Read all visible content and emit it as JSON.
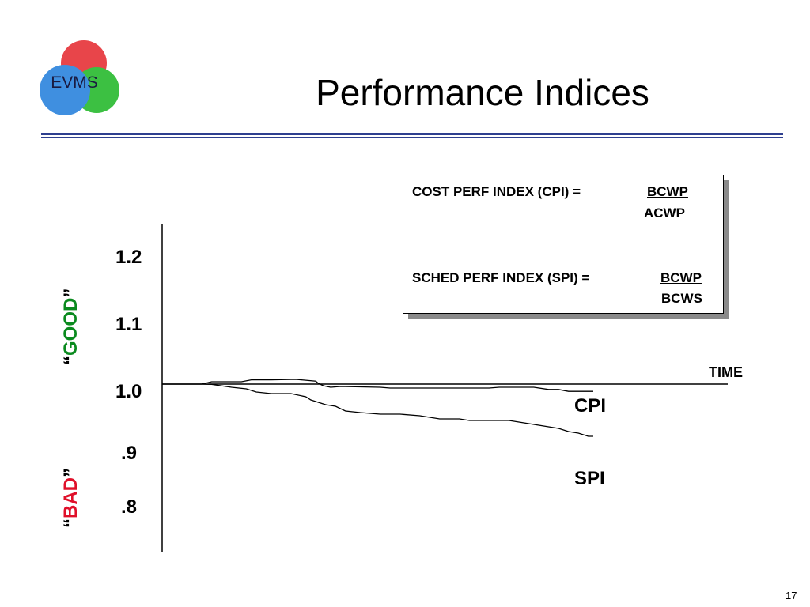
{
  "slide": {
    "title": "Performance Indices",
    "page_number": "17",
    "logo_text": "EVMS"
  },
  "formula_box": {
    "cpi_label": "COST PERF INDEX (CPI) =",
    "cpi_numerator": "BCWP",
    "cpi_denominator": "ACWP",
    "spi_label": "SCHED PERF INDEX (SPI) =",
    "spi_numerator": "BCWP",
    "spi_denominator": "BCWS"
  },
  "annotations": {
    "good_open_quote": "“",
    "good_word": "GOOD",
    "good_close_quote": "”",
    "bad_open_quote": "“",
    "bad_word": "BAD",
    "bad_close_quote": "”"
  },
  "colors": {
    "rule": "#2e3f8f",
    "good": "#0a8a1e",
    "bad": "#e0102a",
    "logo_red": "#e8454a",
    "logo_green": "#3cc042",
    "logo_blue": "#3f8fe0"
  },
  "chart_data": {
    "type": "line",
    "xlabel": "TIME",
    "ylabel": "",
    "y_tick_labels": [
      "1.2",
      "1.1",
      "1.0",
      ".9",
      ".8"
    ],
    "y_tick_values": [
      1.2,
      1.1,
      1.0,
      0.9,
      0.8
    ],
    "ylim": [
      0.75,
      1.25
    ],
    "xlim": [
      0,
      100
    ],
    "grid": false,
    "series": [
      {
        "name": "CPI",
        "x": [
          0,
          4,
          6,
          12,
          14,
          18,
          23,
          27,
          27.5,
          28.5,
          30,
          32,
          40,
          42,
          44,
          62,
          64,
          71,
          74,
          76,
          78,
          80,
          83
        ],
        "values": [
          1.0,
          1.0,
          1.0015,
          1.0015,
          1.0027,
          1.0027,
          1.003,
          1.0019,
          1.0005,
          0.999,
          0.998,
          0.9985,
          0.998,
          0.9975,
          0.9975,
          0.9975,
          0.998,
          0.998,
          0.9966,
          0.9966,
          0.9954,
          0.9954,
          0.9954
        ]
      },
      {
        "name": "SPI",
        "x": [
          0,
          4,
          6,
          10,
          13,
          15,
          18,
          22,
          25,
          26,
          27,
          28,
          29,
          31,
          33,
          36,
          40,
          44,
          48,
          52,
          56,
          58,
          60,
          66,
          68,
          70,
          74,
          76,
          78,
          80,
          82,
          83
        ],
        "values": [
          1.0,
          1.0,
          0.9998,
          0.998,
          0.997,
          0.995,
          0.994,
          0.994,
          0.992,
          0.99,
          0.989,
          0.988,
          0.987,
          0.986,
          0.983,
          0.982,
          0.981,
          0.981,
          0.98,
          0.978,
          0.978,
          0.977,
          0.977,
          0.977,
          0.976,
          0.975,
          0.973,
          0.972,
          0.97,
          0.969,
          0.967,
          0.967
        ]
      }
    ]
  }
}
